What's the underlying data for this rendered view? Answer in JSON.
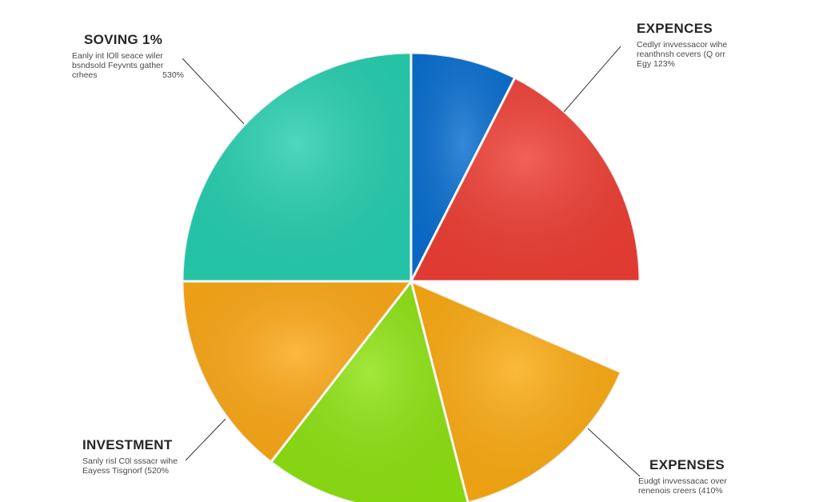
{
  "chart_data": {
    "type": "pie",
    "slices": [
      {
        "label": "SOVING 1%",
        "value": 25.0,
        "color": "#27cfb0"
      },
      {
        "label": "",
        "value": 7.5,
        "color": "#0a6fd0"
      },
      {
        "label": "EXPENCES",
        "value": 17.5,
        "color": "#ee3f35"
      },
      {
        "label": "",
        "value": 6.5,
        "color": "#ffffff"
      },
      {
        "label": "EXPENSES",
        "value": 14.5,
        "color": "#fbab12"
      },
      {
        "label": "",
        "value": 14.5,
        "color": "#8ee312"
      },
      {
        "label": "INVESTMENT",
        "value": 14.5,
        "color": "#fca816"
      }
    ]
  },
  "annotations": {
    "saving": {
      "title": "SOVING 1%",
      "line1": "Eanly int lOll seace wiler",
      "line2": "bsndsold Feyvnts gather",
      "line3": "crhees",
      "pct": "530%"
    },
    "expences": {
      "title": "EXPENCES",
      "line1": "Cedlyr invvessacor wihe",
      "line2": "reanthnsh cevers (Q orr",
      "line3": "Egy 123%"
    },
    "investment": {
      "title": "INVESTMENT",
      "line1": "Sanly risl C0l sssacr wihe",
      "line2": "Eayess Tisgnorf (520%"
    },
    "expenses": {
      "title": "EXPENSES",
      "line1": "Eudgt invvessacac over",
      "line2": "renenois creers (410%"
    }
  }
}
